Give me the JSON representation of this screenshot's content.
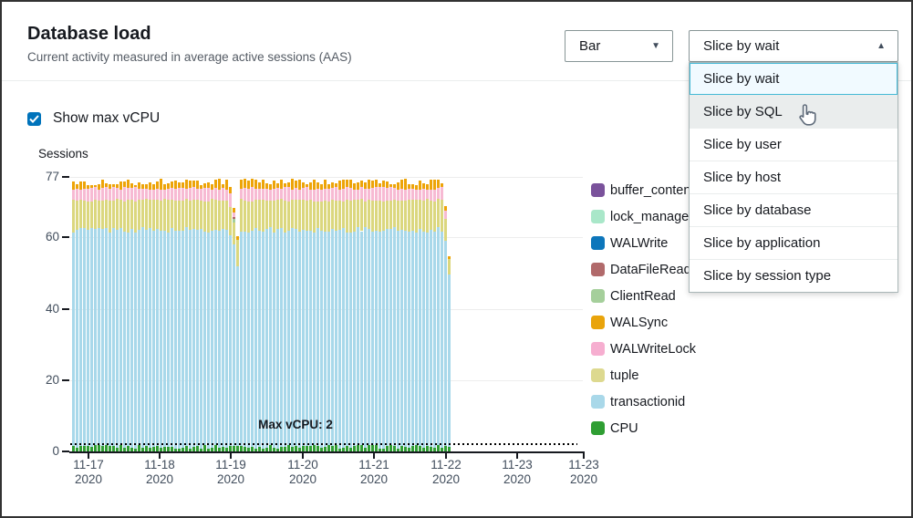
{
  "header": {
    "title": "Database load",
    "subtitle": "Current activity measured in average active sessions (AAS)"
  },
  "toolbar": {
    "chart_type_select": {
      "value": "Bar"
    },
    "slice_select": {
      "value": "Slice by wait"
    }
  },
  "dropdown": {
    "options": [
      "Slice by wait",
      "Slice by SQL",
      "Slice by user",
      "Slice by host",
      "Slice by database",
      "Slice by application",
      "Slice by session type"
    ],
    "selected": "Slice by wait",
    "hovered": "Slice by SQL"
  },
  "controls": {
    "show_max_vcpu": {
      "label": "Show max vCPU",
      "checked": true
    }
  },
  "colors": {
    "accent_blue": "#0073bb",
    "selected_option_bg": "#f1faff",
    "selected_option_border": "#44b9d6",
    "hovered_option_bg": "#eaeded",
    "axis": "#16191f"
  },
  "chart_data": {
    "type": "stacked-bar",
    "ylabel": "Sessions",
    "ylim": [
      0,
      77
    ],
    "y_ticks": [
      77,
      60,
      40,
      20,
      0
    ],
    "x_ticks": [
      {
        "month": "11-17",
        "year": "2020"
      },
      {
        "month": "11-18",
        "year": "2020"
      },
      {
        "month": "11-19",
        "year": "2020"
      },
      {
        "month": "11-20",
        "year": "2020"
      },
      {
        "month": "11-21",
        "year": "2020"
      },
      {
        "month": "11-22",
        "year": "2020"
      },
      {
        "month": "11-23",
        "year": "2020"
      },
      {
        "month": "11-23",
        "year": "2020"
      }
    ],
    "max_vcpu_annotation": {
      "label": "Max vCPU: 2",
      "value": 2
    },
    "series_order_bottom_to_top": [
      "CPU",
      "transactionid",
      "tuple",
      "WALWriteLock",
      "WALSync"
    ],
    "typical_stacked_values": {
      "CPU": 1.5,
      "transactionid": 60.5,
      "tuple": 8,
      "WALWriteLock": 3.3,
      "WALSync": 2,
      "total": 75.5
    },
    "bar_colors": {
      "CPU": "#2f9e33",
      "transactionid": "#a8d8ea",
      "tuple": "#dbd77e",
      "WALWriteLock": "#f7bad3",
      "WALSync": "#eda408",
      "ClientRead": "#a5cf9b",
      "DataFileRead": "#b16a6b"
    },
    "bars": {
      "count": 104,
      "model": {
        "cpu_base": 0.8,
        "cpu_var": 1.0,
        "transactionid_base": 61.3,
        "transactionid_var": 1.7,
        "tuple_base": 70.0,
        "tuple_var": 0.8,
        "walwritelock_base": 73.3,
        "walwritelock_var": 0.9,
        "walsync_base": 74.6,
        "walsync_var": 1.9
      },
      "special": {
        "43": [
          [
            "CPU",
            0,
            1.5
          ],
          [
            "transactionid",
            1.5,
            60.5
          ],
          [
            "tuple",
            60.5,
            68.5
          ],
          [
            "WALWriteLock",
            68.5,
            72.3
          ],
          [
            "WALSync",
            72.3,
            74.2
          ]
        ],
        "44": [
          [
            "CPU",
            0,
            1.5
          ],
          [
            "transactionid",
            1.5,
            58
          ],
          [
            "tuple",
            58,
            64.3
          ],
          [
            "ClientRead",
            64.3,
            65.1
          ],
          [
            "DataFileRead",
            65.1,
            65.8
          ],
          [
            "WALWriteLock",
            65.8,
            67.1
          ],
          [
            "WALSync",
            67.1,
            68.2
          ]
        ],
        "45": [
          [
            "CPU",
            0,
            1.5
          ],
          [
            "transactionid",
            1.5,
            52
          ],
          [
            "tuple",
            52,
            59.4
          ],
          [
            "WALSync",
            59.4,
            60.3
          ]
        ],
        "102": [
          [
            "CPU",
            0,
            1.5
          ],
          [
            "transactionid",
            1.5,
            59
          ],
          [
            "tuple",
            59,
            65.2
          ],
          [
            "WALWriteLock",
            65.2,
            67.6
          ],
          [
            "WALSync",
            67.6,
            68.7
          ]
        ],
        "103": [
          [
            "CPU",
            0,
            1.2
          ],
          [
            "transactionid",
            1.2,
            49.6
          ],
          [
            "tuple",
            49.6,
            53.9
          ],
          [
            "WALSync",
            53.9,
            54.7
          ]
        ]
      }
    },
    "legend": [
      {
        "label": "buffer_content",
        "color": "#7a529b"
      },
      {
        "label": "lock_manager",
        "color": "#a9e7c9"
      },
      {
        "label": "WALWrite",
        "color": "#0d76bb"
      },
      {
        "label": "DataFileRead",
        "color": "#b16a6b"
      },
      {
        "label": "ClientRead",
        "color": "#a5cf9b"
      },
      {
        "label": "WALSync",
        "color": "#e9a40b"
      },
      {
        "label": "WALWriteLock",
        "color": "#f6aed0"
      },
      {
        "label": "tuple",
        "color": "#ddd98f"
      },
      {
        "label": "transactionid",
        "color": "#a9d8e9"
      },
      {
        "label": "CPU",
        "color": "#2f9e33"
      }
    ]
  }
}
